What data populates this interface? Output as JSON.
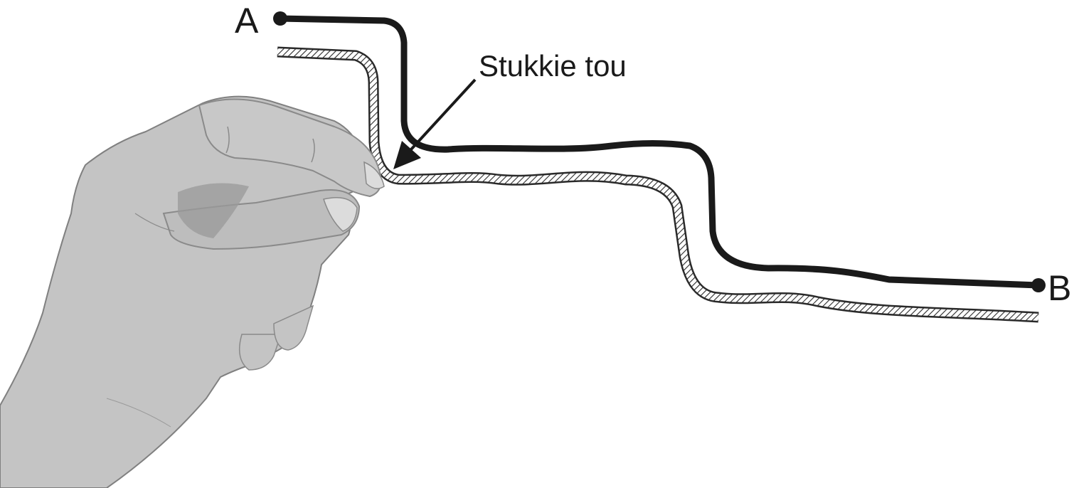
{
  "labels": {
    "point_a": "A",
    "point_b": "B",
    "rope_caption": "Stukkie tou"
  },
  "colors": {
    "path_line": "#1a1a1a",
    "hand_fill": "#c4c4c4",
    "hand_shadow": "#9a9a9a",
    "rope_hatch": "#2a2a2a"
  },
  "icons": {
    "hand": "hand-pinching-icon",
    "arrow": "arrow-icon"
  }
}
